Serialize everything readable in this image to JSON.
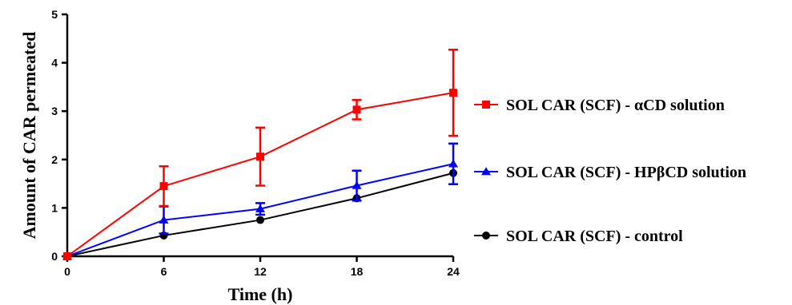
{
  "chart_data": {
    "type": "line",
    "xlabel": "Time (h)",
    "ylabel": "Amount of CAR permeated",
    "xlim": [
      0,
      24
    ],
    "ylim": [
      0,
      5
    ],
    "x_ticks": [
      0,
      6,
      12,
      18,
      24
    ],
    "y_ticks": [
      0,
      1,
      2,
      3,
      4,
      5
    ],
    "grid": false,
    "legend_position": "right",
    "series": [
      {
        "name": "SOL CAR (SCF) - αCD solution",
        "color": "#ff0000",
        "marker": "square",
        "x": [
          0,
          6,
          12,
          18,
          24
        ],
        "y": [
          0,
          1.45,
          2.06,
          3.03,
          3.38
        ],
        "err": [
          0,
          0.41,
          0.6,
          0.2,
          0.89
        ]
      },
      {
        "name": "SOL CAR (SCF) - HPβCD solution",
        "color": "#0000ff",
        "marker": "triangle",
        "x": [
          0,
          6,
          12,
          18,
          24
        ],
        "y": [
          0,
          0.75,
          0.98,
          1.46,
          1.91
        ],
        "err": [
          0,
          0.28,
          0.12,
          0.31,
          0.42
        ]
      },
      {
        "name": "SOL CAR (SCF) - control",
        "color": "#000000",
        "marker": "circle",
        "x": [
          0,
          6,
          12,
          18,
          24
        ],
        "y": [
          0,
          0.43,
          0.75,
          1.2,
          1.72
        ],
        "err": [
          0,
          0,
          0,
          0,
          0
        ]
      }
    ]
  }
}
